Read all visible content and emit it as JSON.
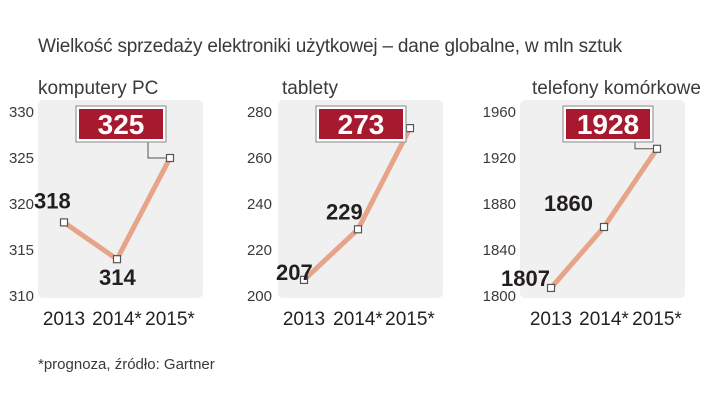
{
  "title": "Wielkość sprzedaży elektroniki użytkowej – dane globalne, w mln sztuk",
  "footnote": "*prognoza, źródło: Gartner",
  "colors": {
    "line": "#e6a489",
    "accent": "#a6192e",
    "panel": "#f0f0f0"
  },
  "chart_data": [
    {
      "type": "line",
      "title": "komputery PC",
      "categories": [
        "2013",
        "2014*",
        "2015*"
      ],
      "values": [
        318,
        314,
        325
      ],
      "labels": [
        "318",
        "314",
        "325"
      ],
      "highlight_index": 2,
      "ylim": [
        310,
        330
      ],
      "yticks": [
        310,
        315,
        320,
        325,
        330
      ],
      "ytick_labels": [
        "310",
        "315",
        "320",
        "325",
        "330"
      ]
    },
    {
      "type": "line",
      "title": "tablety",
      "categories": [
        "2013",
        "2014*",
        "2015*"
      ],
      "values": [
        207,
        229,
        273
      ],
      "labels": [
        "207",
        "229",
        "273"
      ],
      "highlight_index": 2,
      "ylim": [
        200,
        280
      ],
      "yticks": [
        200,
        220,
        240,
        260,
        280
      ],
      "ytick_labels": [
        "200",
        "220",
        "240",
        "260",
        "280"
      ]
    },
    {
      "type": "line",
      "title": "telefony komórkowe",
      "categories": [
        "2013",
        "2014*",
        "2015*"
      ],
      "values": [
        1807,
        1860,
        1928
      ],
      "labels": [
        "1807",
        "1860",
        "1928"
      ],
      "highlight_index": 2,
      "ylim": [
        1800,
        1960
      ],
      "yticks": [
        1800,
        1840,
        1880,
        1920,
        1960
      ],
      "ytick_labels": [
        "1800",
        "1840",
        "1880",
        "1920",
        "1960"
      ]
    }
  ]
}
